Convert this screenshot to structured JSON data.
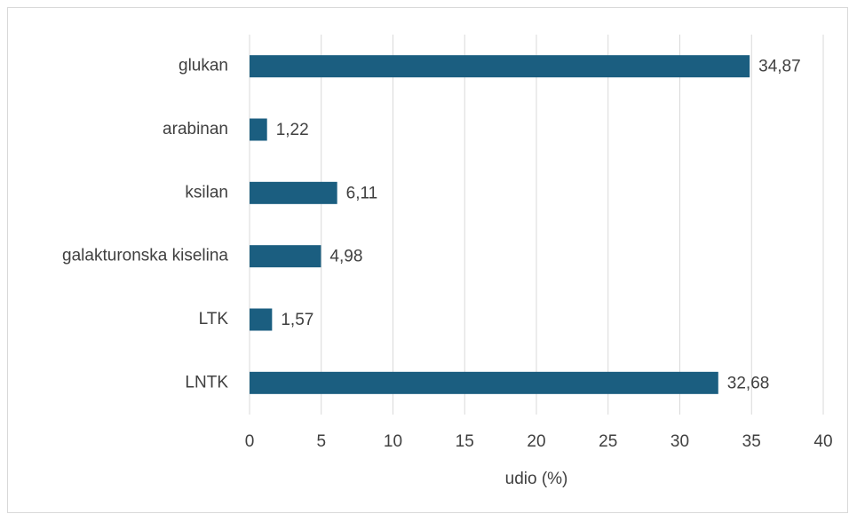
{
  "chart_data": {
    "type": "bar",
    "orientation": "horizontal",
    "categories": [
      "glukan",
      "arabinan",
      "ksilan",
      "galakturonska kiselina",
      "LTK",
      "LNTK"
    ],
    "values": [
      34.87,
      1.22,
      6.11,
      4.98,
      1.57,
      32.68
    ],
    "value_labels": [
      "34,87",
      "1,22",
      "6,11",
      "4,98",
      "1,57",
      "32,68"
    ],
    "color": "#1b5e80",
    "xlabel": "udio (%)",
    "xlim": [
      0,
      40
    ],
    "xticks": [
      0,
      5,
      10,
      15,
      20,
      25,
      30,
      35,
      40
    ],
    "grid": true
  }
}
